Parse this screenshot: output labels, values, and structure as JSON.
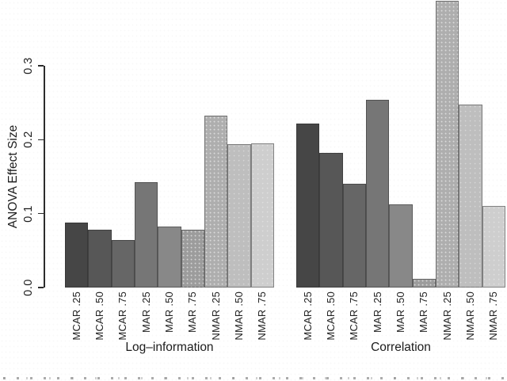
{
  "chart_data": {
    "type": "bar",
    "title": "",
    "xlabel": "",
    "ylabel": "ANOVA Effect Size",
    "ylim": [
      0,
      0.39
    ],
    "yticks": [
      0,
      0.1,
      0.2,
      0.3
    ],
    "ytick_labels": [
      "0.0",
      "0.1",
      "0.2",
      "0.3"
    ],
    "grid": false,
    "legend": "none",
    "categories": [
      "MCAR .25",
      "MCAR .50",
      "MCAR .75",
      "MAR .25",
      "MAR .50",
      "MAR .75",
      "NMAR .25",
      "NMAR .50",
      "NMAR .75"
    ],
    "series": [
      {
        "name": "Log–information",
        "values": [
          0.088,
          0.078,
          0.064,
          0.143,
          0.082,
          0.078,
          0.233,
          0.194,
          0.195
        ]
      },
      {
        "name": "Correlation",
        "values": [
          0.222,
          0.182,
          0.14,
          0.254,
          0.113,
          0.012,
          0.388,
          0.248,
          0.11
        ]
      }
    ],
    "bar_colors": [
      "#464646",
      "#575757",
      "#666666",
      "#767676",
      "#888888",
      "#9c9c9c",
      "#aeaeae",
      "#bebebe",
      "#cecece"
    ],
    "clipped_bars": [
      {
        "series": "Correlation",
        "category": "NMAR .25",
        "note": "bar top clipped at upper edge of figure"
      }
    ]
  }
}
